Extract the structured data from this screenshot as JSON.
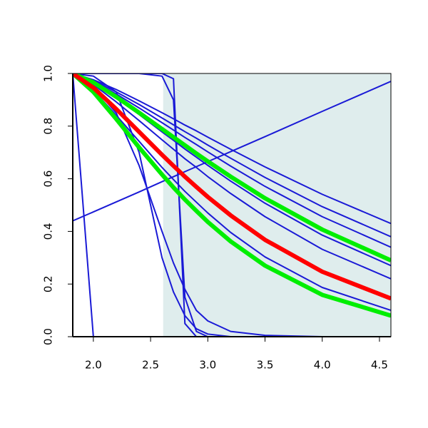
{
  "chart_data": {
    "type": "line",
    "x": [
      1.82,
      2.0,
      2.2,
      2.4,
      2.6,
      2.7,
      2.8,
      2.9,
      3.0,
      3.2,
      3.5,
      4.0,
      4.6
    ],
    "xlim": [
      1.82,
      4.6
    ],
    "ylim": [
      0,
      1
    ],
    "xticks": [
      {
        "value": 2,
        "label": "2.0"
      },
      2.5,
      {
        "value": 3,
        "label": "3.0"
      },
      3.5,
      {
        "value": 4,
        "label": "4.0"
      },
      4.5
    ],
    "yticks": [
      {
        "value": 0,
        "label": "0.0"
      },
      0.2,
      0.4,
      0.6,
      0.8,
      {
        "value": 1,
        "label": "1.0"
      }
    ],
    "shaded_xrange": [
      2.61,
      4.6
    ],
    "shade_color": "#dfeded",
    "series": [
      {
        "color": "#1a1ad6",
        "linewidth": 2,
        "values": [
          0.44,
          0.474,
          0.512,
          0.55,
          0.589,
          0.608,
          0.627,
          0.646,
          0.665,
          0.703,
          0.76,
          0.856,
          0.97
        ]
      },
      {
        "color": "#1a1ad6",
        "linewidth": 2,
        "values": [
          1,
          0,
          0,
          0,
          0,
          0,
          0,
          0,
          0,
          0,
          0,
          0,
          0
        ]
      },
      {
        "color": "#1a1ad6",
        "linewidth": 2,
        "values": [
          1,
          1,
          1,
          1,
          1,
          0.98,
          0.05,
          0,
          0,
          0,
          0,
          0,
          0
        ]
      },
      {
        "color": "#1a1ad6",
        "linewidth": 2,
        "values": [
          1,
          1,
          1,
          1,
          0.99,
          0.9,
          0.15,
          0.02,
          0,
          0,
          0,
          0,
          0
        ]
      },
      {
        "color": "#1a1ad6",
        "linewidth": 2,
        "values": [
          1,
          0.99,
          0.93,
          0.7,
          0.3,
          0.17,
          0.08,
          0.03,
          0.01,
          0,
          0,
          0,
          0
        ]
      },
      {
        "color": "#1a1ad6",
        "linewidth": 2,
        "values": [
          1,
          0.95,
          0.85,
          0.65,
          0.4,
          0.28,
          0.18,
          0.1,
          0.06,
          0.02,
          0.005,
          0,
          0
        ]
      },
      {
        "color": "#1a1ad6",
        "linewidth": 2,
        "values": [
          1,
          0.976,
          0.939,
          0.896,
          0.851,
          0.828,
          0.804,
          0.782,
          0.758,
          0.712,
          0.645,
          0.541,
          0.43
        ]
      },
      {
        "color": "#1a1ad6",
        "linewidth": 2,
        "values": [
          1,
          0.973,
          0.93,
          0.882,
          0.831,
          0.805,
          0.779,
          0.754,
          0.728,
          0.678,
          0.605,
          0.494,
          0.38
        ]
      },
      {
        "color": "#1a1ad6",
        "linewidth": 2,
        "values": [
          1,
          0.97,
          0.922,
          0.869,
          0.813,
          0.785,
          0.757,
          0.73,
          0.702,
          0.648,
          0.571,
          0.456,
          0.34
        ]
      },
      {
        "color": "#1a1ad6",
        "linewidth": 2,
        "values": [
          1,
          0.963,
          0.906,
          0.844,
          0.778,
          0.746,
          0.713,
          0.682,
          0.651,
          0.591,
          0.507,
          0.386,
          0.27
        ]
      },
      {
        "color": "#1a1ad6",
        "linewidth": 2,
        "values": [
          1,
          0.958,
          0.892,
          0.821,
          0.748,
          0.712,
          0.676,
          0.643,
          0.608,
          0.544,
          0.456,
          0.332,
          0.22
        ]
      },
      {
        "color": "#1a1ad6",
        "linewidth": 2,
        "values": [
          1,
          0.936,
          0.841,
          0.742,
          0.643,
          0.597,
          0.552,
          0.511,
          0.47,
          0.396,
          0.303,
          0.187,
          0.1
        ]
      },
      {
        "color": "#00ee00",
        "linewidth": 6,
        "values": [
          1,
          0.966,
          0.911,
          0.851,
          0.789,
          0.758,
          0.727,
          0.696,
          0.666,
          0.608,
          0.526,
          0.407,
          0.29
        ]
      },
      {
        "color": "#00ee00",
        "linewidth": 6,
        "values": [
          1,
          0.93,
          0.827,
          0.719,
          0.616,
          0.567,
          0.521,
          0.478,
          0.436,
          0.362,
          0.27,
          0.159,
          0.08
        ]
      },
      {
        "color": "#ff0000",
        "linewidth": 6,
        "values": [
          1,
          0.946,
          0.865,
          0.778,
          0.691,
          0.649,
          0.608,
          0.569,
          0.531,
          0.461,
          0.368,
          0.247,
          0.145
        ]
      }
    ]
  }
}
